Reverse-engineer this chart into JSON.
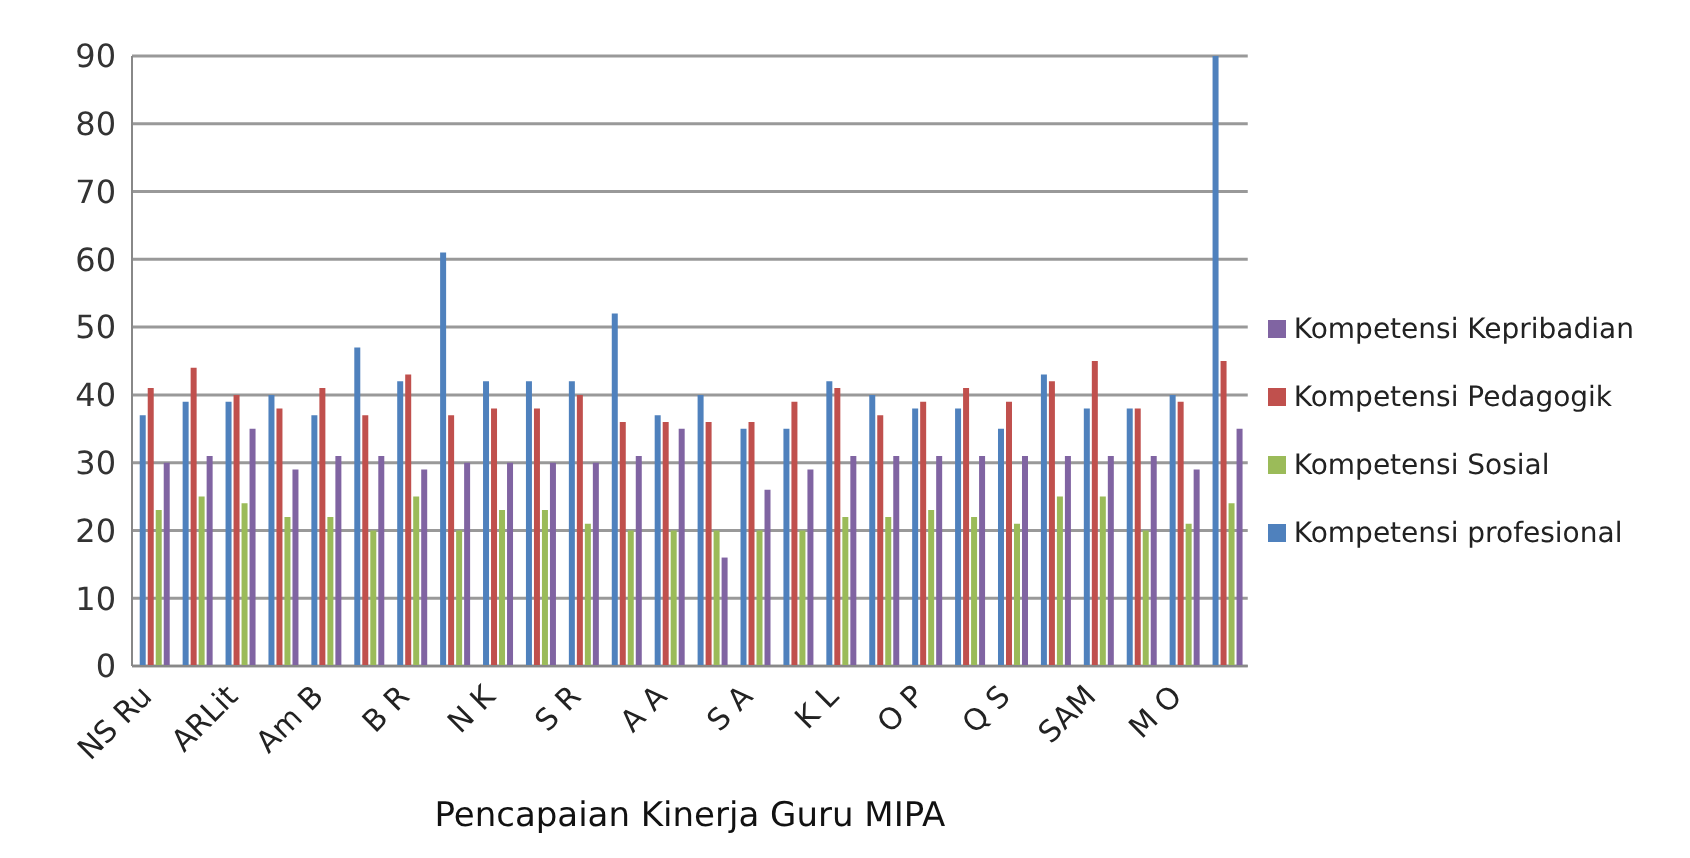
{
  "chart_data": {
    "type": "bar",
    "xlabel": "Pencapaian Kinerja Guru MIPA",
    "categories": [
      "NS Ru",
      null,
      "ARLit",
      null,
      "Am B",
      null,
      "B R",
      null,
      "N K",
      null,
      "S R",
      null,
      "A A",
      null,
      "S A",
      null,
      "K L",
      null,
      "O P",
      null,
      "Q S",
      null,
      "SAM",
      null,
      "M O",
      null
    ],
    "series": [
      {
        "name": "Kompetensi profesional",
        "color": "#4f81bd",
        "values": [
          37,
          39,
          39,
          40,
          37,
          47,
          42,
          61,
          42,
          42,
          42,
          52,
          37,
          40,
          35,
          35,
          42,
          40,
          38,
          38,
          35,
          43,
          38,
          38,
          40,
          90
        ]
      },
      {
        "name": "Kompetensi Pedagogik",
        "color": "#c0504d",
        "values": [
          41,
          44,
          40,
          38,
          41,
          37,
          43,
          37,
          38,
          38,
          40,
          36,
          36,
          36,
          36,
          39,
          41,
          37,
          39,
          41,
          39,
          42,
          45,
          38,
          39,
          45
        ]
      },
      {
        "name": "Kompetensi Sosial",
        "color": "#9bbb59",
        "values": [
          23,
          25,
          24,
          22,
          22,
          20,
          25,
          20,
          23,
          23,
          21,
          20,
          20,
          20,
          20,
          20,
          22,
          22,
          23,
          22,
          21,
          25,
          25,
          20,
          21,
          24
        ]
      },
      {
        "name": "Kompetensi Kepribadian",
        "color": "#8064a2",
        "values": [
          30,
          31,
          35,
          29,
          31,
          31,
          29,
          30,
          30,
          30,
          30,
          31,
          35,
          16,
          26,
          29,
          31,
          31,
          31,
          31,
          31,
          31,
          31,
          31,
          29,
          35
        ]
      }
    ],
    "ylim": [
      0,
      90
    ],
    "yticks": [
      0,
      10,
      20,
      30,
      40,
      50,
      60,
      70,
      80,
      90
    ],
    "grid": "y",
    "legend": "right"
  }
}
